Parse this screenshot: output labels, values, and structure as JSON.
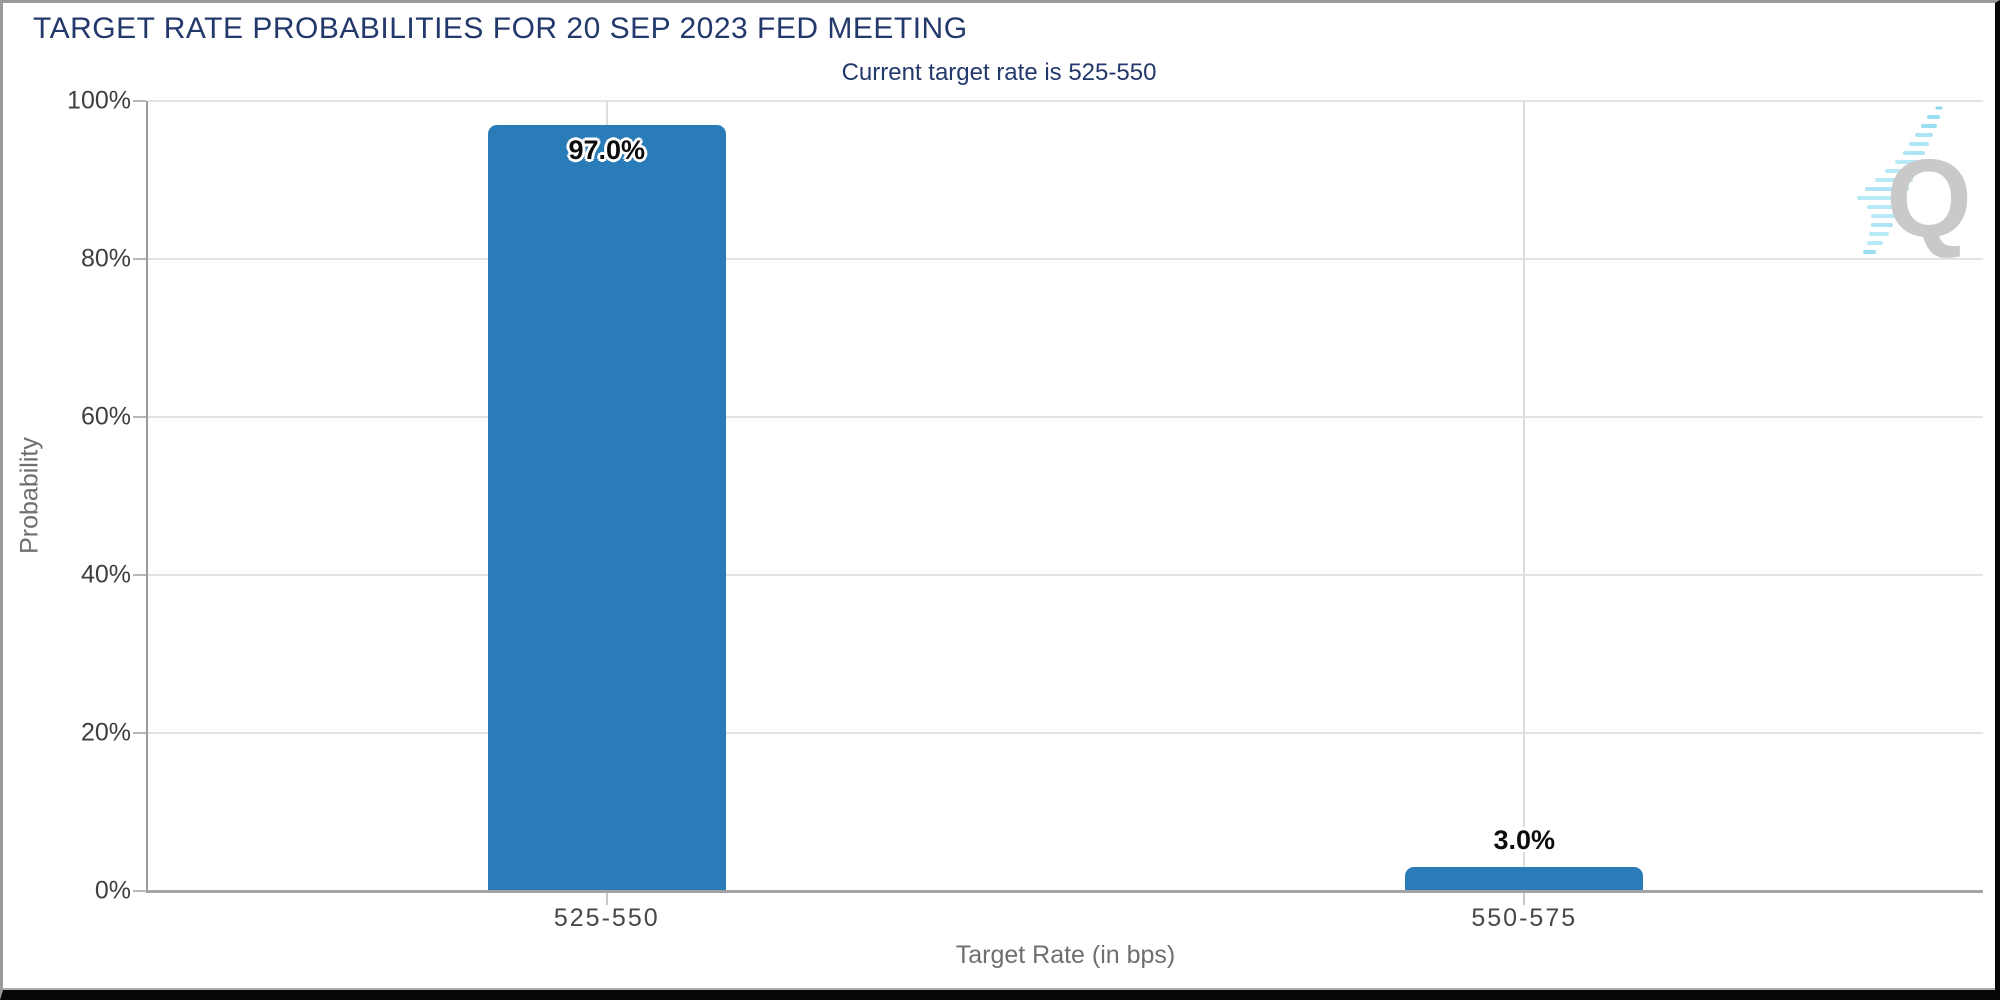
{
  "chart_data": {
    "type": "bar",
    "title": "TARGET RATE PROBABILITIES FOR 20 SEP 2023 FED MEETING",
    "subtitle": "Current target rate is 525-550",
    "categories": [
      "525-550",
      "550-575"
    ],
    "values": [
      97.0,
      3.0
    ],
    "value_labels": [
      "97.0%",
      "3.0%"
    ],
    "xlabel": "Target Rate (in bps)",
    "ylabel": "Probability",
    "ylim": [
      0,
      100
    ],
    "ytick_step": 20,
    "yticks": [
      "0%",
      "20%",
      "40%",
      "60%",
      "80%",
      "100%"
    ],
    "grid": true,
    "legend": false,
    "bar_color": "#2a7cb9"
  },
  "colors": {
    "title_navy": "#24396b",
    "bar_blue": "#2a7cb9",
    "axis_gray": "#9a9a9a",
    "gridline_gray": "#e3e3e3",
    "tick_text": "#3f3f3f",
    "axis_title_text": "#6f6f6f",
    "logo_gray": "#c9c9c9",
    "logo_blue": "#aee4f4"
  },
  "logo": {
    "letter": "Q"
  }
}
